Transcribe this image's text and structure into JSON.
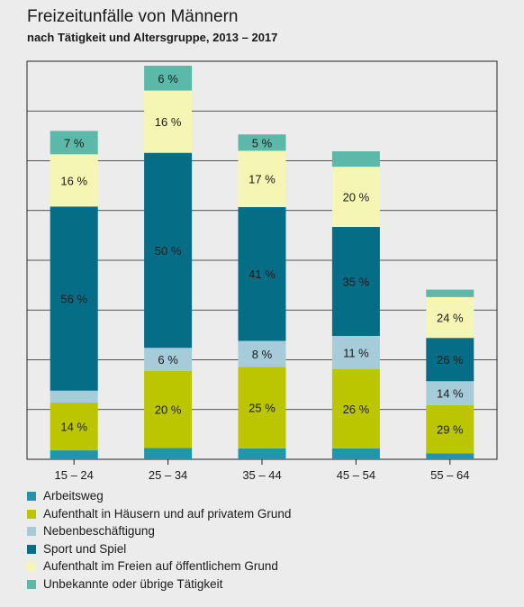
{
  "chart_data": {
    "type": "bar",
    "stacked": true,
    "title": "Freizeitunfälle von Männern",
    "subtitle": "nach Tätigkeit und Altersgruppe, 2013 – 2017",
    "categories": [
      "15 – 24",
      "25 – 34",
      "35 – 44",
      "45 – 54",
      "55 – 64"
    ],
    "ylim": [
      0,
      8
    ],
    "grid": true,
    "legend_position": "bottom",
    "series": [
      {
        "name": "Arbeitsweg",
        "color": "#1f97a9",
        "values": [
          0.18,
          0.23,
          0.22,
          0.22,
          0.12
        ]
      },
      {
        "name": "Aufenthalt in Häusern und auf privatem Grund",
        "color": "#bcc600",
        "values": [
          0.96,
          1.55,
          1.64,
          1.59,
          0.97
        ]
      },
      {
        "name": "Nebenbeschäftigung",
        "color": "#a6ccd9",
        "values": [
          0.24,
          0.46,
          0.52,
          0.67,
          0.48
        ]
      },
      {
        "name": "Sport und Spiel",
        "color": "#056d85",
        "values": [
          3.7,
          3.92,
          2.69,
          2.19,
          0.87
        ]
      },
      {
        "name": "Aufenthalt im Freien auf öffentlichem Grund",
        "color": "#f6f6b4",
        "values": [
          1.05,
          1.25,
          1.13,
          1.21,
          0.82
        ]
      },
      {
        "name": "Unbekannte oder übrige Tätigkeit",
        "color": "#5cb9a9",
        "values": [
          0.47,
          0.5,
          0.33,
          0.31,
          0.15
        ]
      }
    ],
    "data_labels": [
      [
        "",
        "14 %",
        "",
        "56 %",
        "16 %",
        "7 %"
      ],
      [
        "",
        "20 %",
        "6 %",
        "50 %",
        "16 %",
        "6 %"
      ],
      [
        "",
        "25 %",
        "8 %",
        "41 %",
        "17 %",
        "5 %"
      ],
      [
        "",
        "26 %",
        "11 %",
        "35 %",
        "20 %",
        ""
      ],
      [
        "",
        "29 %",
        "14 %",
        "26 %",
        "24 %",
        ""
      ]
    ]
  }
}
